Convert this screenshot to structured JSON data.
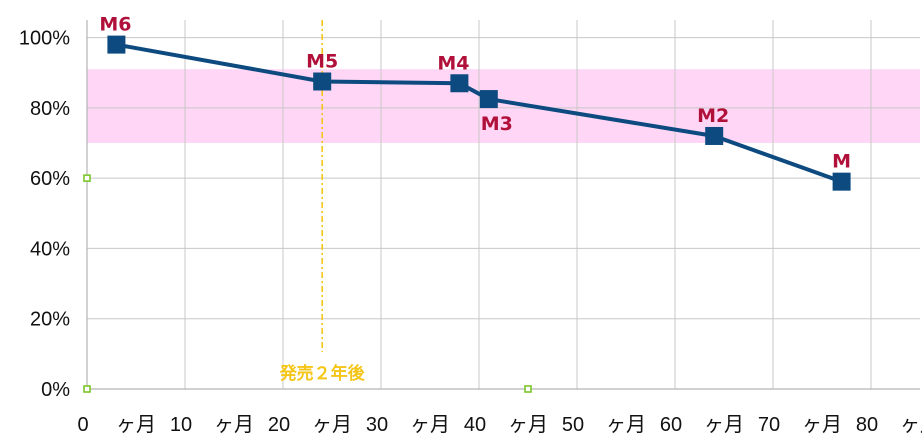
{
  "chart_data": {
    "type": "line",
    "title": "",
    "xlabel": "",
    "ylabel": "",
    "x_axis": {
      "min": 0,
      "max": 85,
      "ticks": [
        0,
        10,
        20,
        30,
        40,
        50,
        60,
        70,
        80
      ],
      "tick_suffix": " ヶ月"
    },
    "y_axis": {
      "min": 0,
      "max": 1.05,
      "ticks": [
        0,
        0.2,
        0.4,
        0.6,
        0.8,
        1.0
      ],
      "format": "percent"
    },
    "grid": true,
    "series": [
      {
        "color": "#0d4a80",
        "marker": "square",
        "points": [
          {
            "x": 3,
            "y": 0.98,
            "label": "M6"
          },
          {
            "x": 24,
            "y": 0.875,
            "label": "M5"
          },
          {
            "x": 38,
            "y": 0.87,
            "label": "M4"
          },
          {
            "x": 41,
            "y": 0.825,
            "label": "M3"
          },
          {
            "x": 64,
            "y": 0.72,
            "label": "M2"
          },
          {
            "x": 77,
            "y": 0.59,
            "label": "M"
          }
        ]
      }
    ],
    "band": {
      "y_from": 0.7,
      "y_to": 0.91,
      "color": "#ffd6f5"
    },
    "vertical_line": {
      "x": 24,
      "label": "発売２年後",
      "color": "#f5c518"
    },
    "small_markers": [
      {
        "x": 0,
        "y": 0.6
      },
      {
        "x": 0,
        "y": 0.0
      },
      {
        "x": 45,
        "y": 0.0
      }
    ],
    "small_marker_color": "#7cc52a",
    "colors": {
      "grid": "#c8c8c8",
      "axis": "#b3b3b3",
      "label": "#b0103a",
      "tick_text": "#111111"
    }
  }
}
